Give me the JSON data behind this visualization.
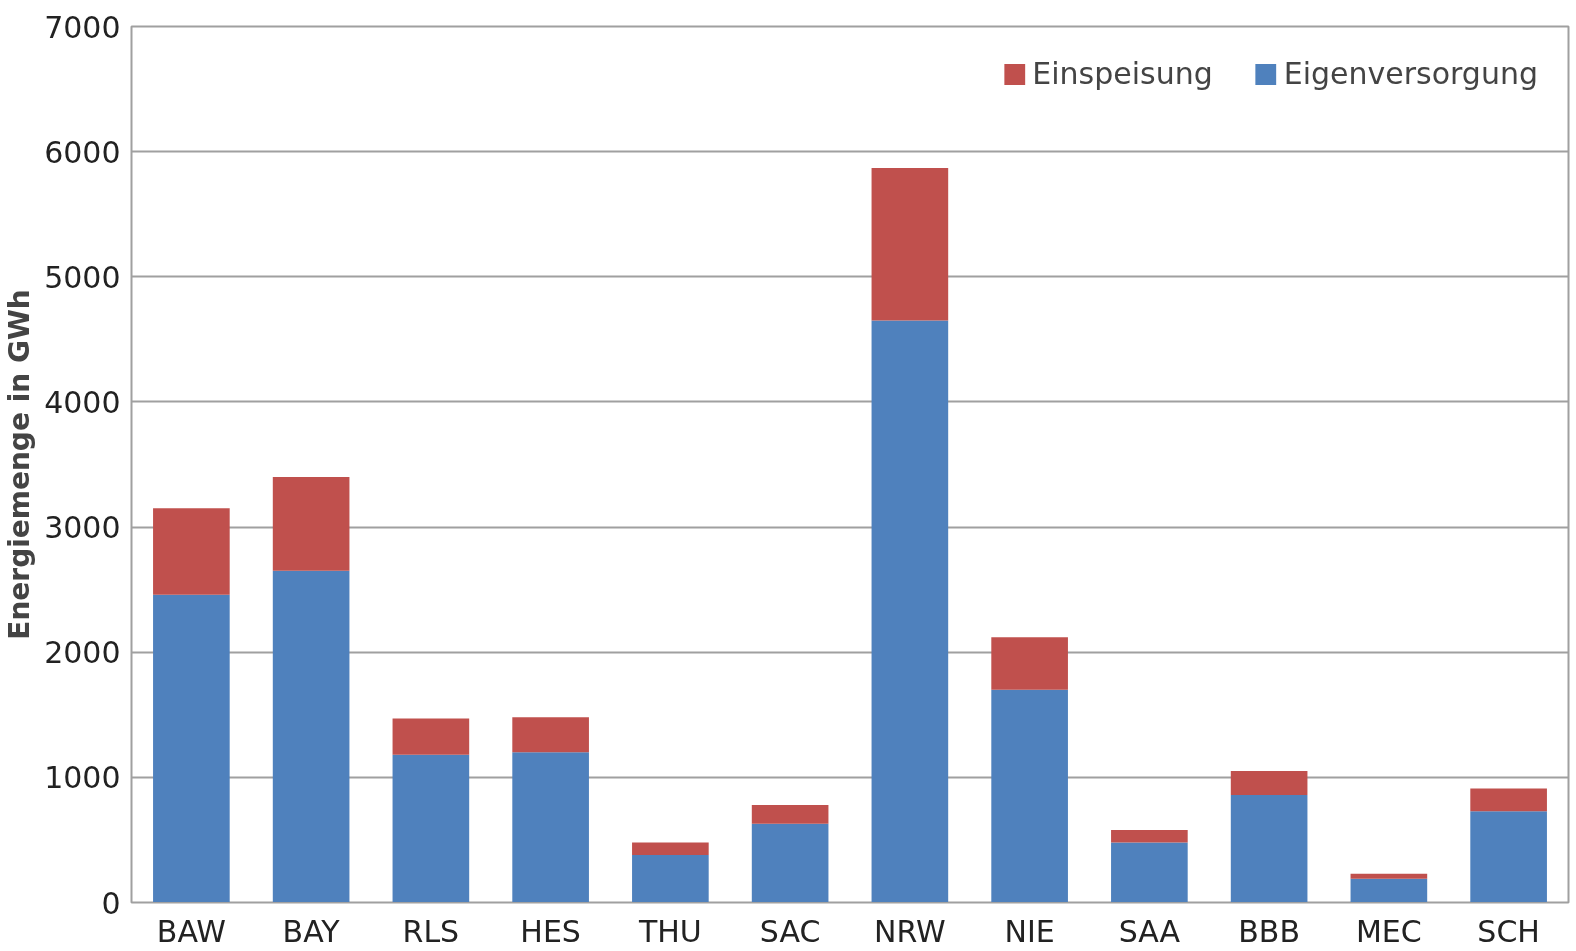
{
  "chart_data": {
    "type": "bar",
    "stacked": true,
    "ylabel": "Energiemenge in GWh",
    "categories": [
      "BAW",
      "BAY",
      "RLS",
      "HES",
      "THU",
      "SAC",
      "NRW",
      "NIE",
      "SAA",
      "BBB",
      "MEC",
      "SCH"
    ],
    "series": [
      {
        "name": "Eigenversorgung",
        "color": "#4f81bd",
        "values": [
          2460,
          2650,
          1180,
          1200,
          380,
          630,
          4650,
          1700,
          480,
          860,
          190,
          730
        ]
      },
      {
        "name": "Einspeisung",
        "color": "#c0504d",
        "values": [
          690,
          750,
          290,
          280,
          100,
          150,
          1220,
          420,
          100,
          190,
          40,
          180
        ]
      }
    ],
    "ylim": [
      0,
      7000
    ],
    "yticks": [
      0,
      1000,
      2000,
      3000,
      4000,
      5000,
      6000,
      7000
    ],
    "grid": "y",
    "legend": "top right"
  }
}
